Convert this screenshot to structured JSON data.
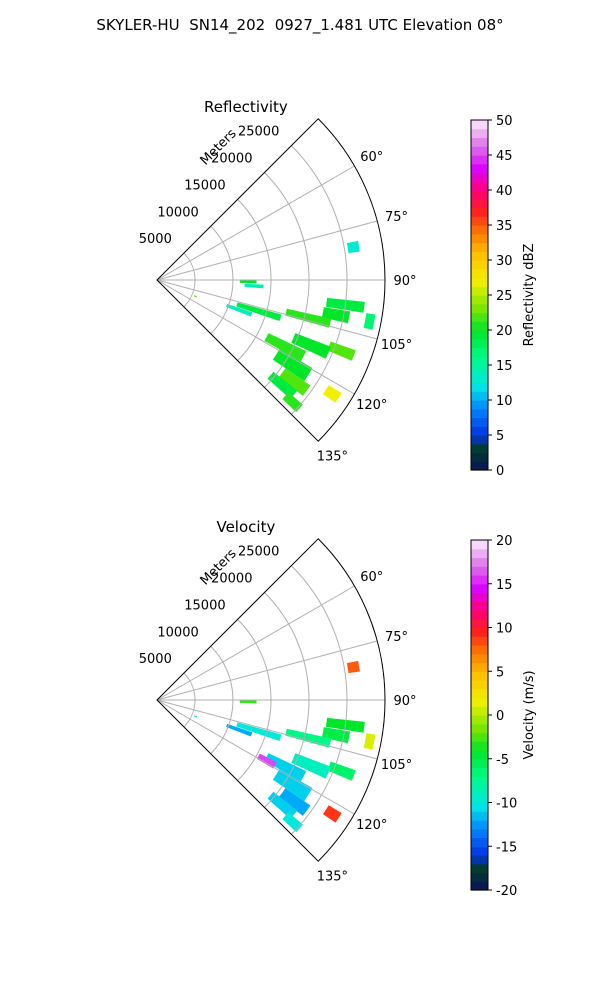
{
  "figure": {
    "title": "SKYLER-HU  SN14_202  0927_1.481 UTC Elevation 08°"
  },
  "chart_data": [
    {
      "type": "heatmap",
      "subtype": "polar sector PPI",
      "title": "Reflectivity",
      "radial_axis_label": "Meters",
      "radial_ticks": [
        "5000",
        "10000",
        "15000",
        "20000",
        "25000"
      ],
      "radial_tick_values": [
        5000,
        10000,
        15000,
        20000,
        25000
      ],
      "rmax": 30000,
      "angle_ticks": [
        "60°",
        "75°",
        "90°",
        "105°",
        "120°",
        "135°"
      ],
      "angle_tick_values": [
        60,
        75,
        90,
        105,
        120,
        135
      ],
      "sector": [
        45,
        135
      ],
      "grid": true,
      "colorbar": {
        "label": "Reflectivity dBZ",
        "min": 0,
        "max": 50,
        "ticks": [
          "0",
          "5",
          "10",
          "15",
          "20",
          "25",
          "30",
          "35",
          "40",
          "45",
          "50"
        ]
      },
      "cells": [
        {
          "az": 80.5,
          "r": 26200,
          "dr": 1500,
          "daz": 3.0,
          "value": 13
        },
        {
          "az": 91.0,
          "r": 12000,
          "dr": 2200,
          "daz": 2.0,
          "value": 20
        },
        {
          "az": 93.5,
          "r": 12800,
          "dr": 2500,
          "daz": 2.0,
          "value": 14
        },
        {
          "az": 97.5,
          "r": 25000,
          "dr": 5000,
          "daz": 3.0,
          "value": 19
        },
        {
          "az": 101.0,
          "r": 28500,
          "dr": 1200,
          "daz": 4.0,
          "value": 17
        },
        {
          "az": 101.0,
          "r": 24000,
          "dr": 3500,
          "daz": 3.5,
          "value": 20
        },
        {
          "az": 104.0,
          "r": 20500,
          "dr": 6000,
          "daz": 3.0,
          "value": 21
        },
        {
          "az": 107.0,
          "r": 14000,
          "dr": 6000,
          "daz": 3.0,
          "value": 19
        },
        {
          "az": 110.0,
          "r": 11500,
          "dr": 3500,
          "daz": 2.5,
          "value": 14
        },
        {
          "az": 111.0,
          "r": 26000,
          "dr": 3500,
          "daz": 3.0,
          "value": 22
        },
        {
          "az": 113.0,
          "r": 22000,
          "dr": 5000,
          "daz": 4.0,
          "value": 20
        },
        {
          "az": 117.5,
          "r": 19000,
          "dr": 5500,
          "daz": 4.0,
          "value": 21
        },
        {
          "az": 122.0,
          "r": 21000,
          "dr": 5000,
          "daz": 5.0,
          "value": 20
        },
        {
          "az": 123.0,
          "r": 27500,
          "dr": 2000,
          "daz": 3.0,
          "value": 27
        },
        {
          "az": 126.5,
          "r": 22500,
          "dr": 4000,
          "daz": 4.0,
          "value": 22
        },
        {
          "az": 130.0,
          "r": 21500,
          "dr": 4000,
          "daz": 3.5,
          "value": 19
        },
        {
          "az": 132.0,
          "r": 24000,
          "dr": 2500,
          "daz": 3.0,
          "value": 21
        },
        {
          "az": 113.0,
          "r": 5500,
          "dr": 400,
          "daz": 1.5,
          "value": 22
        }
      ]
    },
    {
      "type": "heatmap",
      "subtype": "polar sector PPI",
      "title": "Velocity",
      "radial_axis_label": "Meters",
      "radial_ticks": [
        "5000",
        "10000",
        "15000",
        "20000",
        "25000"
      ],
      "radial_tick_values": [
        5000,
        10000,
        15000,
        20000,
        25000
      ],
      "rmax": 30000,
      "angle_ticks": [
        "60°",
        "75°",
        "90°",
        "105°",
        "120°",
        "135°"
      ],
      "angle_tick_values": [
        60,
        75,
        90,
        105,
        120,
        135
      ],
      "sector": [
        45,
        135
      ],
      "grid": true,
      "colorbar": {
        "label": "Velocity (m/s)",
        "min": -20,
        "max": 20,
        "ticks": [
          "-20",
          "-15",
          "-10",
          "-5",
          "0",
          "5",
          "10",
          "15",
          "20"
        ]
      },
      "cells": [
        {
          "az": 80.5,
          "r": 26200,
          "dr": 1500,
          "daz": 3.0,
          "value": 8
        },
        {
          "az": 91.0,
          "r": 12000,
          "dr": 2200,
          "daz": 2.0,
          "value": -3
        },
        {
          "az": 97.5,
          "r": 25000,
          "dr": 5000,
          "daz": 3.0,
          "value": -4
        },
        {
          "az": 101.0,
          "r": 28500,
          "dr": 1200,
          "daz": 4.0,
          "value": 1
        },
        {
          "az": 101.0,
          "r": 24000,
          "dr": 3500,
          "daz": 3.5,
          "value": -5
        },
        {
          "az": 104.0,
          "r": 20500,
          "dr": 6000,
          "daz": 3.0,
          "value": -7
        },
        {
          "az": 107.0,
          "r": 14000,
          "dr": 6000,
          "daz": 3.0,
          "value": -10
        },
        {
          "az": 110.0,
          "r": 11500,
          "dr": 3500,
          "daz": 2.5,
          "value": -12
        },
        {
          "az": 111.0,
          "r": 26000,
          "dr": 3500,
          "daz": 3.0,
          "value": -6
        },
        {
          "az": 113.0,
          "r": 22000,
          "dr": 5000,
          "daz": 4.0,
          "value": -9
        },
        {
          "az": 117.5,
          "r": 19000,
          "dr": 5500,
          "daz": 4.0,
          "value": -11
        },
        {
          "az": 119.0,
          "r": 16500,
          "dr": 2500,
          "daz": 3.0,
          "value": 16
        },
        {
          "az": 122.0,
          "r": 21000,
          "dr": 5000,
          "daz": 5.0,
          "value": -11
        },
        {
          "az": 123.0,
          "r": 27500,
          "dr": 2000,
          "daz": 3.0,
          "value": 9
        },
        {
          "az": 126.5,
          "r": 22500,
          "dr": 4000,
          "daz": 4.0,
          "value": -12
        },
        {
          "az": 130.0,
          "r": 21500,
          "dr": 4000,
          "daz": 3.5,
          "value": -11
        },
        {
          "az": 132.0,
          "r": 24000,
          "dr": 2500,
          "daz": 3.0,
          "value": -10
        },
        {
          "az": 113.0,
          "r": 5500,
          "dr": 400,
          "daz": 1.5,
          "value": -11
        }
      ]
    }
  ]
}
